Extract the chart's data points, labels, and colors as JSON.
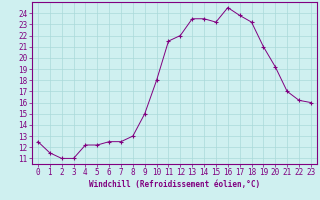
{
  "x": [
    0,
    1,
    2,
    3,
    4,
    5,
    6,
    7,
    8,
    9,
    10,
    11,
    12,
    13,
    14,
    15,
    16,
    17,
    18,
    19,
    20,
    21,
    22,
    23
  ],
  "y": [
    12.5,
    11.5,
    11.0,
    11.0,
    12.2,
    12.2,
    12.5,
    12.5,
    13.0,
    15.0,
    18.0,
    21.5,
    22.0,
    23.5,
    23.5,
    23.2,
    24.5,
    23.8,
    23.2,
    21.0,
    19.2,
    17.0,
    16.2,
    16.0
  ],
  "line_color": "#800080",
  "marker": "+",
  "marker_color": "#800080",
  "bg_color": "#cff0f0",
  "grid_color": "#aadada",
  "axis_color": "#800080",
  "tick_color": "#800080",
  "xlabel": "Windchill (Refroidissement éolien,°C)",
  "xlabel_color": "#800080",
  "ylim": [
    10.5,
    25.0
  ],
  "xlim": [
    -0.5,
    23.5
  ],
  "yticks": [
    11,
    12,
    13,
    14,
    15,
    16,
    17,
    18,
    19,
    20,
    21,
    22,
    23,
    24
  ],
  "xticks": [
    0,
    1,
    2,
    3,
    4,
    5,
    6,
    7,
    8,
    9,
    10,
    11,
    12,
    13,
    14,
    15,
    16,
    17,
    18,
    19,
    20,
    21,
    22,
    23
  ],
  "label_fontsize": 5.5,
  "tick_fontsize": 5.5
}
